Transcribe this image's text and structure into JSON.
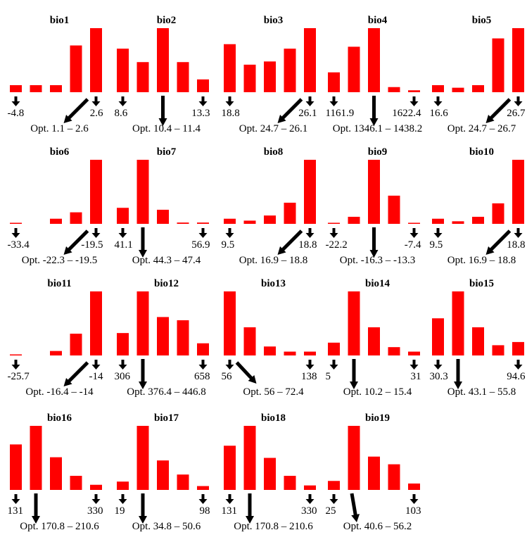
{
  "chart_data": [
    {
      "type": "bar",
      "title": "bio1",
      "values": [
        11,
        11,
        11,
        73,
        100
      ],
      "min_label": "-4.8",
      "max_label": "2.6",
      "opt_label": "Opt. 1.1 – 2.6",
      "opt_arrow": "diagonal-left",
      "opt_bin": 5
    },
    {
      "type": "bar",
      "title": "bio2",
      "values": [
        68,
        47,
        100,
        47,
        20
      ],
      "min_label": "8.6",
      "max_label": "13.3",
      "opt_label": "Opt. 10.4 – 11.4",
      "opt_arrow": "vertical",
      "opt_bin": 3
    },
    {
      "type": "bar",
      "title": "bio3",
      "values": [
        75,
        43,
        48,
        68,
        100
      ],
      "min_label": "18.8",
      "max_label": "26.1",
      "opt_label": "Opt. 24.7 – 26.1",
      "opt_arrow": "diagonal-left",
      "opt_bin": 5
    },
    {
      "type": "bar",
      "title": "bio4",
      "values": [
        31,
        71,
        100,
        8,
        3
      ],
      "min_label": "1161.9",
      "max_label": "1622.4",
      "opt_label": "Opt. 1346.1 – 1438.2",
      "opt_arrow": "vertical",
      "opt_bin": 3
    },
    {
      "type": "bar",
      "title": "bio5",
      "values": [
        11,
        7,
        11,
        84,
        100
      ],
      "min_label": "16.6",
      "max_label": "26.7",
      "opt_label": "Opt. 24.7 – 26.7",
      "opt_arrow": "diagonal-left",
      "opt_bin": 5
    },
    {
      "type": "bar",
      "title": "bio6",
      "values": [
        1,
        0,
        8,
        18,
        100
      ],
      "min_label": "-33.4",
      "max_label": "-19.5",
      "opt_label": "Opt. -22.3 – -19.5",
      "opt_arrow": "diagonal-left",
      "opt_bin": 5
    },
    {
      "type": "bar",
      "title": "bio7",
      "values": [
        25,
        100,
        22,
        2,
        2
      ],
      "min_label": "41.1",
      "max_label": "56.9",
      "opt_label": "Opt. 44.3 – 47.4",
      "opt_arrow": "vertical",
      "opt_bin": 2
    },
    {
      "type": "bar",
      "title": "bio8",
      "values": [
        8,
        5,
        13,
        33,
        100
      ],
      "min_label": "9.5",
      "max_label": "18.8",
      "opt_label": "Opt. 16.9 – 18.8",
      "opt_arrow": "diagonal-left",
      "opt_bin": 5
    },
    {
      "type": "bar",
      "title": "bio9",
      "values": [
        1,
        11,
        100,
        44,
        1
      ],
      "min_label": "-22.2",
      "max_label": "-7.4",
      "opt_label": "Opt. -16.3 – -13.3",
      "opt_arrow": "vertical",
      "opt_bin": 3
    },
    {
      "type": "bar",
      "title": "bio10",
      "values": [
        8,
        4,
        11,
        32,
        100
      ],
      "min_label": "9.5",
      "max_label": "18.8",
      "opt_label": "Opt. 16.9 – 18.8",
      "opt_arrow": "diagonal-left",
      "opt_bin": 5
    },
    {
      "type": "bar",
      "title": "bio11",
      "values": [
        1,
        0,
        7,
        34,
        100
      ],
      "min_label": "-25.7",
      "max_label": "-14",
      "opt_label": "Opt. -16.4 – -14",
      "opt_arrow": "diagonal-left",
      "opt_bin": 5
    },
    {
      "type": "bar",
      "title": "bio12",
      "values": [
        35,
        100,
        60,
        55,
        19
      ],
      "min_label": "306",
      "max_label": "658",
      "opt_label": "Opt. 376.4 – 446.8",
      "opt_arrow": "vertical",
      "opt_bin": 2
    },
    {
      "type": "bar",
      "title": "bio13",
      "values": [
        100,
        44,
        14,
        6,
        6
      ],
      "min_label": "56",
      "max_label": "138",
      "opt_label": "Opt. 56 – 72.4",
      "opt_arrow": "diagonal-right",
      "opt_bin": 1
    },
    {
      "type": "bar",
      "title": "bio14",
      "values": [
        20,
        100,
        44,
        13,
        6
      ],
      "min_label": "5",
      "max_label": "31",
      "opt_label": "Opt. 10.2 – 15.4",
      "opt_arrow": "vertical",
      "opt_bin": 2
    },
    {
      "type": "bar",
      "title": "bio15",
      "values": [
        58,
        100,
        44,
        16,
        21
      ],
      "min_label": "30.3",
      "max_label": "94.6",
      "opt_label": "Opt. 43.1 – 55.8",
      "opt_arrow": "vertical",
      "opt_bin": 2
    },
    {
      "type": "bar",
      "title": "bio16",
      "values": [
        71,
        100,
        51,
        22,
        8
      ],
      "min_label": "131",
      "max_label": "330",
      "opt_label": "Opt. 170.8 – 210.6",
      "opt_arrow": "vertical",
      "opt_bin": 2
    },
    {
      "type": "bar",
      "title": "bio17",
      "values": [
        13,
        100,
        46,
        24,
        6
      ],
      "min_label": "19",
      "max_label": "98",
      "opt_label": "Opt. 34.8 – 50.6",
      "opt_arrow": "vertical",
      "opt_bin": 2
    },
    {
      "type": "bar",
      "title": "bio18",
      "values": [
        69,
        100,
        50,
        22,
        7
      ],
      "min_label": "131",
      "max_label": "330",
      "opt_label": "Opt. 170.8 – 210.6",
      "opt_arrow": "vertical",
      "opt_bin": 2
    },
    {
      "type": "bar",
      "title": "bio19",
      "values": [
        14,
        100,
        52,
        40,
        10
      ],
      "min_label": "25",
      "max_label": "103",
      "opt_label": "Opt. 40.6 – 56.2",
      "opt_arrow": "slant-right",
      "opt_bin": 2
    }
  ],
  "colors": {
    "bar": "#ff0000",
    "arrow": "#000000"
  }
}
